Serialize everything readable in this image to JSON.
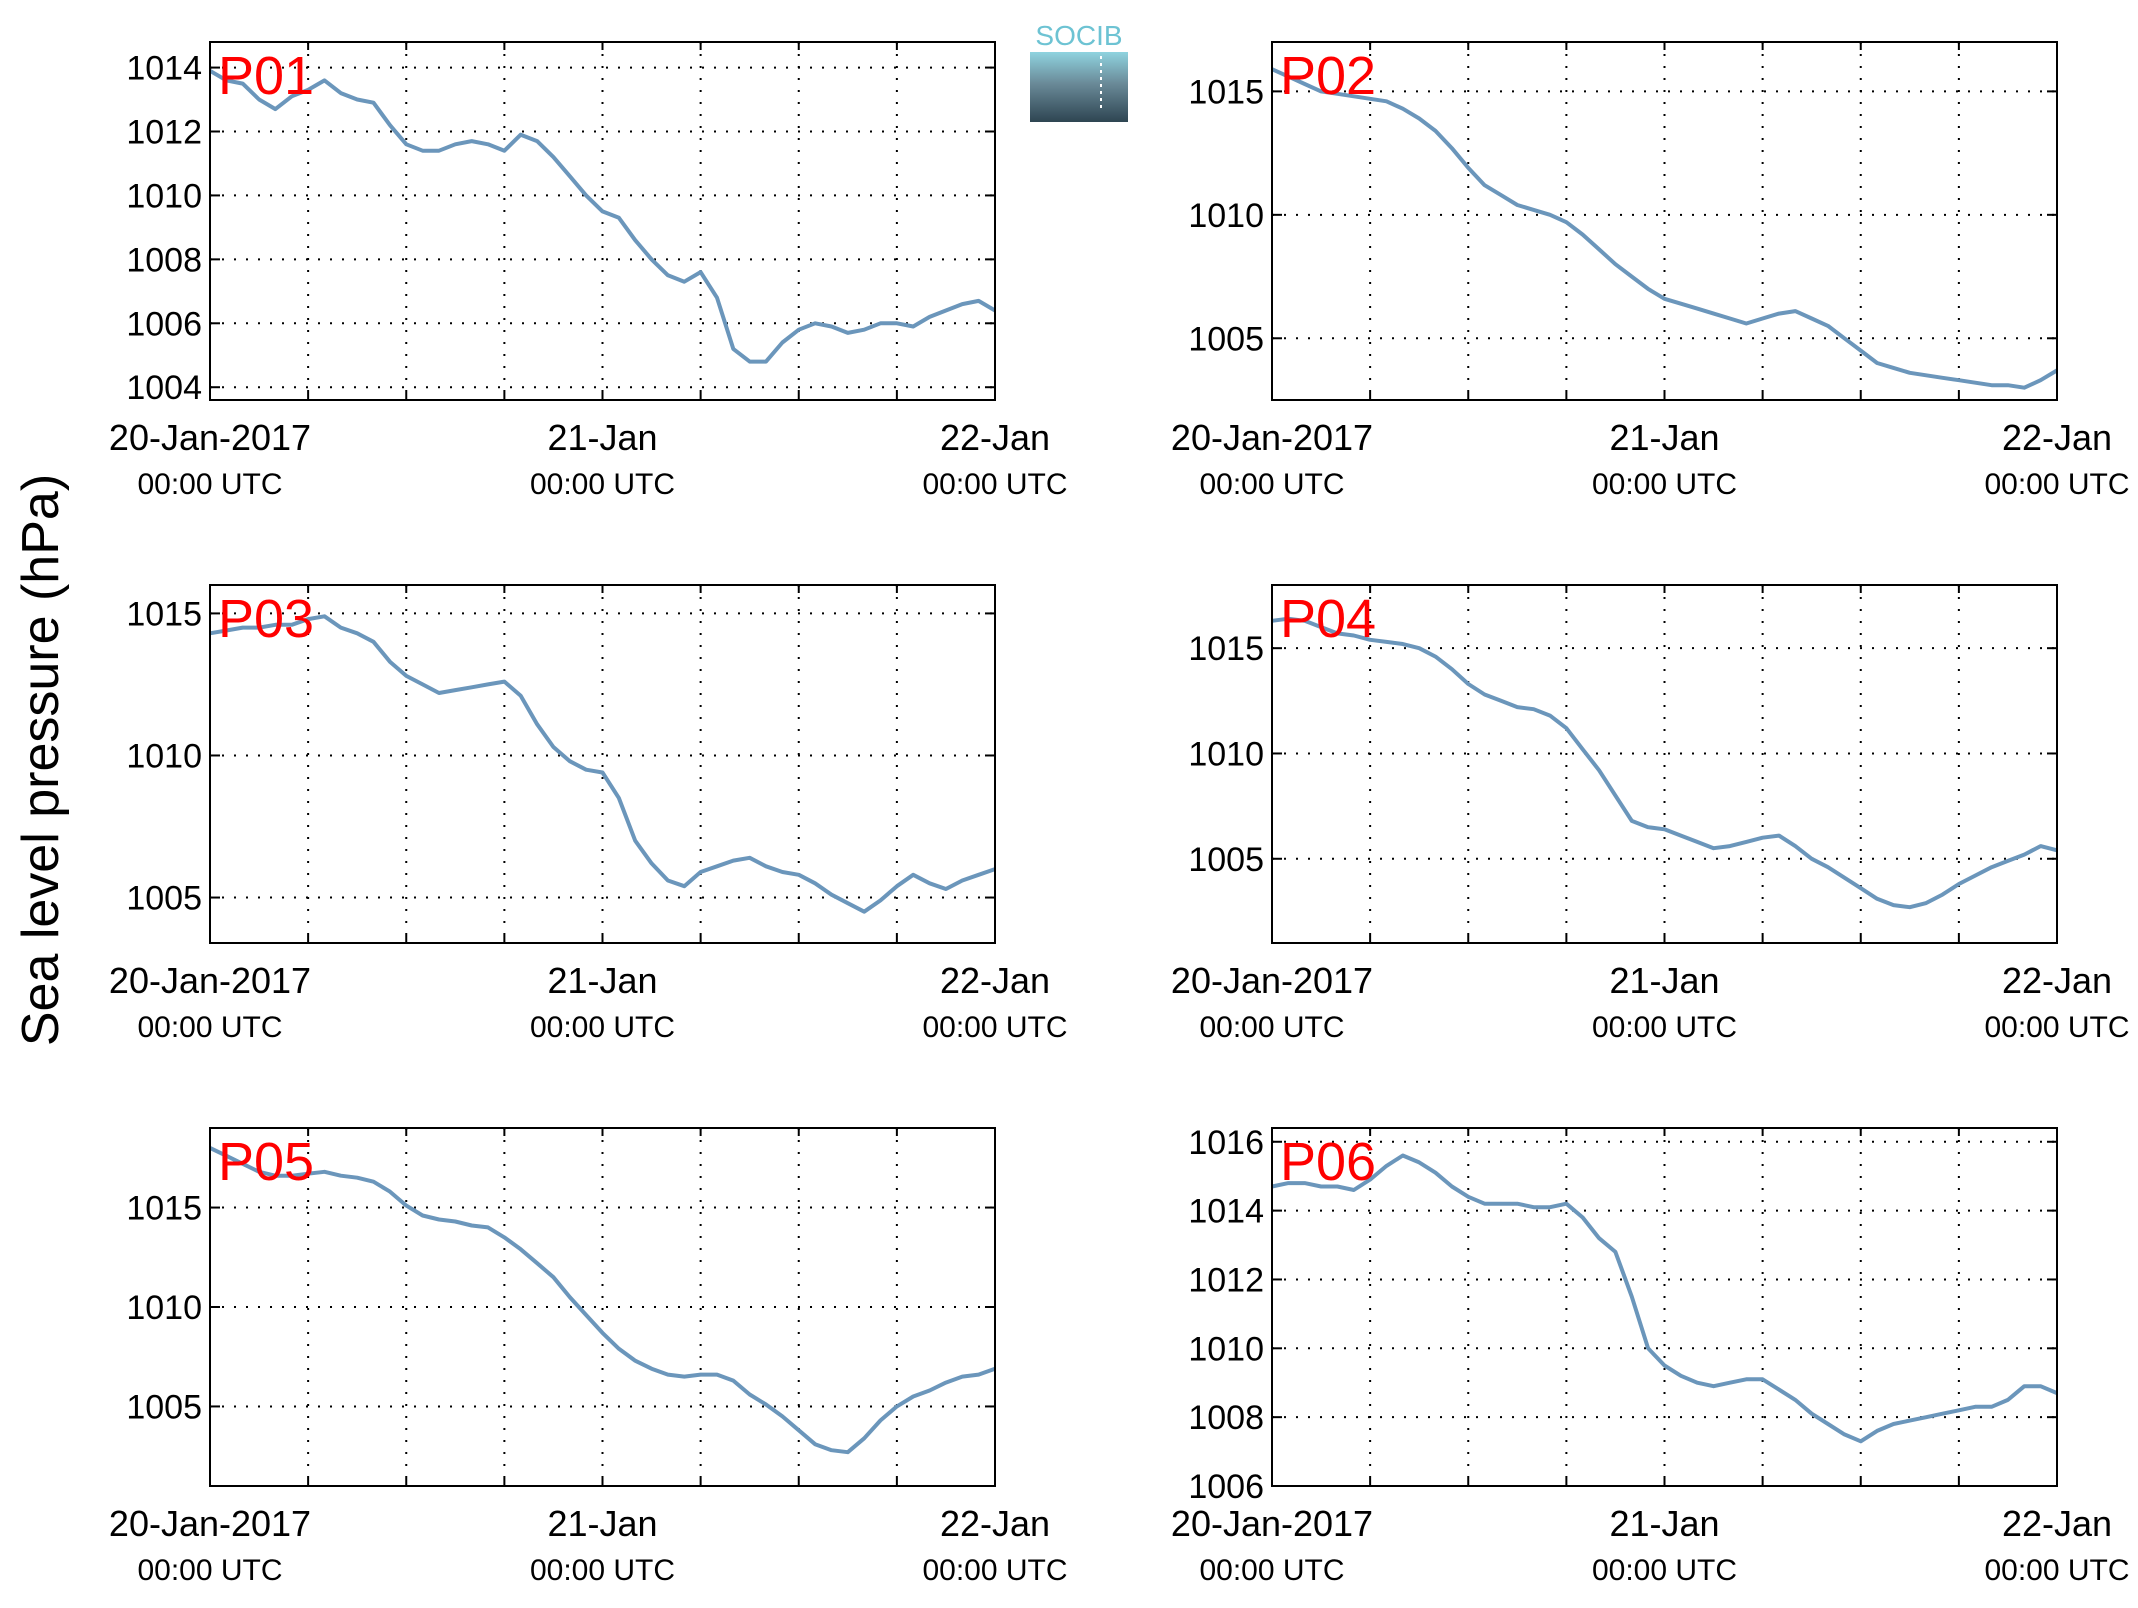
{
  "figure": {
    "ylabel": "Sea level pressure (hPa)",
    "logo_text": "SOCIB"
  },
  "colors": {
    "line": "#6b96bb",
    "station_label": "#ff0000",
    "axis": "#000000",
    "grid": "#000000",
    "logo_top": "#6dc3d3",
    "logo_bottom": "#2e4552"
  },
  "chart_data": [
    {
      "type": "line",
      "title": "P01",
      "x_ticks": [
        {
          "main": "20-Jan-2017",
          "sub": "00:00 UTC"
        },
        {
          "main": "21-Jan",
          "sub": "00:00 UTC"
        },
        {
          "main": "22-Jan",
          "sub": "00:00 UTC"
        }
      ],
      "xlim_hours": [
        0,
        48
      ],
      "ylim": [
        1003.6,
        1014.8
      ],
      "yticks": [
        1004,
        1006,
        1008,
        1010,
        1012,
        1014
      ],
      "grid": true,
      "x": [
        0,
        1,
        2,
        3,
        4,
        5,
        6,
        7,
        8,
        9,
        10,
        11,
        12,
        13,
        14,
        15,
        16,
        17,
        18,
        19,
        20,
        21,
        22,
        23,
        24,
        25,
        26,
        27,
        28,
        29,
        30,
        31,
        32,
        33,
        34,
        35,
        36,
        37,
        38,
        39,
        40,
        41,
        42,
        43,
        44,
        45,
        46,
        47,
        48
      ],
      "y": [
        1013.9,
        1013.6,
        1013.5,
        1013.0,
        1012.7,
        1013.1,
        1013.3,
        1013.6,
        1013.2,
        1013.0,
        1012.9,
        1012.2,
        1011.6,
        1011.4,
        1011.4,
        1011.6,
        1011.7,
        1011.6,
        1011.4,
        1011.9,
        1011.7,
        1011.2,
        1010.6,
        1010.0,
        1009.5,
        1009.3,
        1008.6,
        1008.0,
        1007.5,
        1007.3,
        1007.6,
        1006.8,
        1005.2,
        1004.8,
        1004.8,
        1005.4,
        1005.8,
        1006.0,
        1005.9,
        1005.7,
        1005.8,
        1006.0,
        1006.0,
        1005.9,
        1006.2,
        1006.4,
        1006.6,
        1006.7,
        1006.4
      ],
      "ylabel": ""
    },
    {
      "type": "line",
      "title": "P02",
      "x_ticks": [
        {
          "main": "20-Jan-2017",
          "sub": "00:00 UTC"
        },
        {
          "main": "21-Jan",
          "sub": "00:00 UTC"
        },
        {
          "main": "22-Jan",
          "sub": "00:00 UTC"
        }
      ],
      "xlim_hours": [
        0,
        48
      ],
      "ylim": [
        1002.5,
        1017.0
      ],
      "yticks": [
        1005,
        1010,
        1015
      ],
      "grid": true,
      "x": [
        0,
        1,
        2,
        3,
        4,
        5,
        6,
        7,
        8,
        9,
        10,
        11,
        12,
        13,
        14,
        15,
        16,
        17,
        18,
        19,
        20,
        21,
        22,
        23,
        24,
        25,
        26,
        27,
        28,
        29,
        30,
        31,
        32,
        33,
        34,
        35,
        36,
        37,
        38,
        39,
        40,
        41,
        42,
        43,
        44,
        45,
        46,
        47,
        48
      ],
      "y": [
        1015.9,
        1015.6,
        1015.3,
        1015.0,
        1014.9,
        1014.8,
        1014.7,
        1014.6,
        1014.3,
        1013.9,
        1013.4,
        1012.7,
        1011.9,
        1011.2,
        1010.8,
        1010.4,
        1010.2,
        1010.0,
        1009.7,
        1009.2,
        1008.6,
        1008.0,
        1007.5,
        1007.0,
        1006.6,
        1006.4,
        1006.2,
        1006.0,
        1005.8,
        1005.6,
        1005.8,
        1006.0,
        1006.1,
        1005.8,
        1005.5,
        1005.0,
        1004.5,
        1004.0,
        1003.8,
        1003.6,
        1003.5,
        1003.4,
        1003.3,
        1003.2,
        1003.1,
        1003.1,
        1003.0,
        1003.3,
        1003.7
      ],
      "ylabel": ""
    },
    {
      "type": "line",
      "title": "P03",
      "x_ticks": [
        {
          "main": "20-Jan-2017",
          "sub": "00:00 UTC"
        },
        {
          "main": "21-Jan",
          "sub": "00:00 UTC"
        },
        {
          "main": "22-Jan",
          "sub": "00:00 UTC"
        }
      ],
      "xlim_hours": [
        0,
        48
      ],
      "ylim": [
        1003.4,
        1016.0
      ],
      "yticks": [
        1005,
        1010,
        1015
      ],
      "grid": true,
      "x": [
        0,
        1,
        2,
        3,
        4,
        5,
        6,
        7,
        8,
        9,
        10,
        11,
        12,
        13,
        14,
        15,
        16,
        17,
        18,
        19,
        20,
        21,
        22,
        23,
        24,
        25,
        26,
        27,
        28,
        29,
        30,
        31,
        32,
        33,
        34,
        35,
        36,
        37,
        38,
        39,
        40,
        41,
        42,
        43,
        44,
        45,
        46,
        47,
        48
      ],
      "y": [
        1014.3,
        1014.4,
        1014.5,
        1014.5,
        1014.6,
        1014.6,
        1014.8,
        1014.9,
        1014.5,
        1014.3,
        1014.0,
        1013.3,
        1012.8,
        1012.5,
        1012.2,
        1012.3,
        1012.4,
        1012.5,
        1012.6,
        1012.1,
        1011.1,
        1010.3,
        1009.8,
        1009.5,
        1009.4,
        1008.5,
        1007.0,
        1006.2,
        1005.6,
        1005.4,
        1005.9,
        1006.1,
        1006.3,
        1006.4,
        1006.1,
        1005.9,
        1005.8,
        1005.5,
        1005.1,
        1004.8,
        1004.5,
        1004.9,
        1005.4,
        1005.8,
        1005.5,
        1005.3,
        1005.6,
        1005.8,
        1006.0
      ],
      "ylabel": ""
    },
    {
      "type": "line",
      "title": "P04",
      "x_ticks": [
        {
          "main": "20-Jan-2017",
          "sub": "00:00 UTC"
        },
        {
          "main": "21-Jan",
          "sub": "00:00 UTC"
        },
        {
          "main": "22-Jan",
          "sub": "00:00 UTC"
        }
      ],
      "xlim_hours": [
        0,
        48
      ],
      "ylim": [
        1001.0,
        1018.0
      ],
      "yticks": [
        1005,
        1010,
        1015
      ],
      "grid": true,
      "x": [
        0,
        1,
        2,
        3,
        4,
        5,
        6,
        7,
        8,
        9,
        10,
        11,
        12,
        13,
        14,
        15,
        16,
        17,
        18,
        19,
        20,
        21,
        22,
        23,
        24,
        25,
        26,
        27,
        28,
        29,
        30,
        31,
        32,
        33,
        34,
        35,
        36,
        37,
        38,
        39,
        40,
        41,
        42,
        43,
        44,
        45,
        46,
        47,
        48
      ],
      "y": [
        1016.3,
        1016.4,
        1016.3,
        1016.0,
        1015.7,
        1015.6,
        1015.4,
        1015.3,
        1015.2,
        1015.0,
        1014.6,
        1014.0,
        1013.3,
        1012.8,
        1012.5,
        1012.2,
        1012.1,
        1011.8,
        1011.2,
        1010.2,
        1009.2,
        1008.0,
        1006.8,
        1006.5,
        1006.4,
        1006.1,
        1005.8,
        1005.5,
        1005.6,
        1005.8,
        1006.0,
        1006.1,
        1005.6,
        1005.0,
        1004.6,
        1004.1,
        1003.6,
        1003.1,
        1002.8,
        1002.7,
        1002.9,
        1003.3,
        1003.8,
        1004.2,
        1004.6,
        1004.9,
        1005.2,
        1005.6,
        1005.4
      ],
      "ylabel": ""
    },
    {
      "type": "line",
      "title": "P05",
      "x_ticks": [
        {
          "main": "20-Jan-2017",
          "sub": "00:00 UTC"
        },
        {
          "main": "21-Jan",
          "sub": "00:00 UTC"
        },
        {
          "main": "22-Jan",
          "sub": "00:00 UTC"
        }
      ],
      "xlim_hours": [
        0,
        48
      ],
      "ylim": [
        1001.0,
        1019.0
      ],
      "yticks": [
        1005,
        1010,
        1015
      ],
      "grid": true,
      "x": [
        0,
        1,
        2,
        3,
        4,
        5,
        6,
        7,
        8,
        9,
        10,
        11,
        12,
        13,
        14,
        15,
        16,
        17,
        18,
        19,
        20,
        21,
        22,
        23,
        24,
        25,
        26,
        27,
        28,
        29,
        30,
        31,
        32,
        33,
        34,
        35,
        36,
        37,
        38,
        39,
        40,
        41,
        42,
        43,
        44,
        45,
        46,
        47,
        48
      ],
      "y": [
        1018.0,
        1017.6,
        1017.2,
        1016.8,
        1016.6,
        1016.6,
        1016.7,
        1016.8,
        1016.6,
        1016.5,
        1016.3,
        1015.8,
        1015.1,
        1014.6,
        1014.4,
        1014.3,
        1014.1,
        1014.0,
        1013.5,
        1012.9,
        1012.2,
        1011.5,
        1010.5,
        1009.6,
        1008.7,
        1007.9,
        1007.3,
        1006.9,
        1006.6,
        1006.5,
        1006.6,
        1006.6,
        1006.3,
        1005.6,
        1005.1,
        1004.5,
        1003.8,
        1003.1,
        1002.8,
        1002.7,
        1003.4,
        1004.3,
        1005.0,
        1005.5,
        1005.8,
        1006.2,
        1006.5,
        1006.6,
        1006.9
      ],
      "ylabel": ""
    },
    {
      "type": "line",
      "title": "P06",
      "x_ticks": [
        {
          "main": "20-Jan-2017",
          "sub": "00:00 UTC"
        },
        {
          "main": "21-Jan",
          "sub": "00:00 UTC"
        },
        {
          "main": "22-Jan",
          "sub": "00:00 UTC"
        }
      ],
      "xlim_hours": [
        0,
        48
      ],
      "ylim": [
        1006.0,
        1016.4
      ],
      "yticks": [
        1006,
        1008,
        1010,
        1012,
        1014,
        1016
      ],
      "grid": true,
      "x": [
        0,
        1,
        2,
        3,
        4,
        5,
        6,
        7,
        8,
        9,
        10,
        11,
        12,
        13,
        14,
        15,
        16,
        17,
        18,
        19,
        20,
        21,
        22,
        23,
        24,
        25,
        26,
        27,
        28,
        29,
        30,
        31,
        32,
        33,
        34,
        35,
        36,
        37,
        38,
        39,
        40,
        41,
        42,
        43,
        44,
        45,
        46,
        47,
        48
      ],
      "y": [
        1014.7,
        1014.8,
        1014.8,
        1014.7,
        1014.7,
        1014.6,
        1014.9,
        1015.3,
        1015.6,
        1015.4,
        1015.1,
        1014.7,
        1014.4,
        1014.2,
        1014.2,
        1014.2,
        1014.1,
        1014.1,
        1014.2,
        1013.8,
        1013.2,
        1012.8,
        1011.5,
        1010.0,
        1009.5,
        1009.2,
        1009.0,
        1008.9,
        1009.0,
        1009.1,
        1009.1,
        1008.8,
        1008.5,
        1008.1,
        1007.8,
        1007.5,
        1007.3,
        1007.6,
        1007.8,
        1007.9,
        1008.0,
        1008.1,
        1008.2,
        1008.3,
        1008.3,
        1008.5,
        1008.9,
        1008.9,
        1008.7
      ],
      "ylabel": ""
    }
  ]
}
